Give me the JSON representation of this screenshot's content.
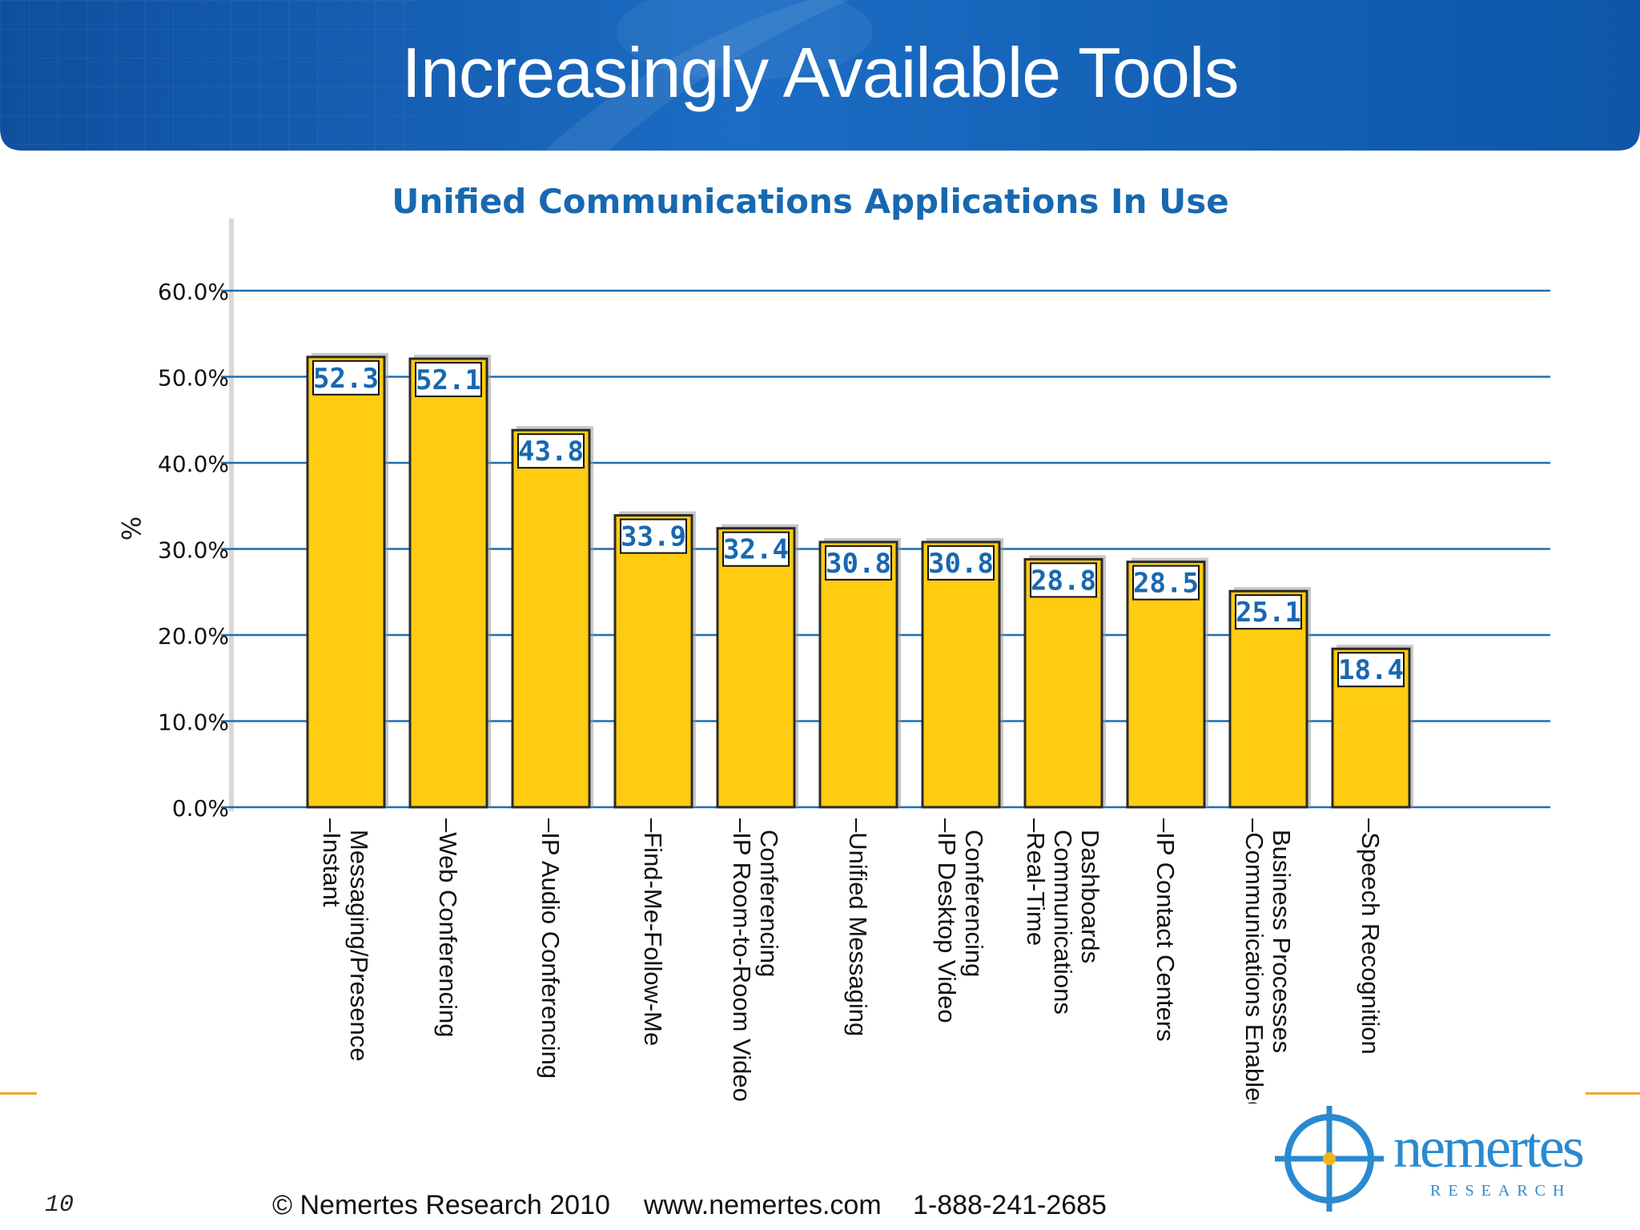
{
  "slide": {
    "title": "Increasingly Available Tools",
    "number": "10",
    "footer_copyright": "© Nemertes Research 2010",
    "footer_url": "www.nemertes.com",
    "footer_phone": "1-888-241-2685"
  },
  "logo": {
    "name": "nemertes",
    "sub": "RESEARCH",
    "icon": "crosshair-logo-icon"
  },
  "colors": {
    "header_blue": "#1560b8",
    "bar_fill": "#ffcc11",
    "gridline": "#1e6fb0",
    "title_blue": "#1868b0",
    "accent_orange": "#f0a830"
  },
  "chart_data": {
    "type": "bar",
    "title": "Unified Communications Applications In Use",
    "ylabel": "%",
    "xlabel": "",
    "ylim": [
      0,
      60
    ],
    "yticks": [
      "0.0%",
      "10.0%",
      "20.0%",
      "30.0%",
      "40.0%",
      "50.0%",
      "60.0%"
    ],
    "grid": true,
    "categories": [
      [
        "Instant",
        "Messaging/Presence"
      ],
      [
        "Web Conferencing"
      ],
      [
        "IP Audio Conferencing"
      ],
      [
        "Find-Me-Follow-Me"
      ],
      [
        "IP Room-to-Room Video",
        "Conferencing"
      ],
      [
        "Unified Messaging"
      ],
      [
        "IP Desktop Video",
        "Conferencing"
      ],
      [
        "Real-Time",
        "Communications",
        "Dashboards"
      ],
      [
        "IP Contact Centers"
      ],
      [
        "Communications Enabled",
        "Business Processes"
      ],
      [
        "Speech Recognition"
      ]
    ],
    "values": [
      52.3,
      52.1,
      43.8,
      33.9,
      32.4,
      30.8,
      30.8,
      28.8,
      28.5,
      25.1,
      18.4
    ],
    "value_labels": [
      "52.3",
      "52.1",
      "43.8",
      "33.9",
      "32.4",
      "30.8",
      "30.8",
      "28.8",
      "28.5",
      "25.1",
      "18.4"
    ]
  }
}
